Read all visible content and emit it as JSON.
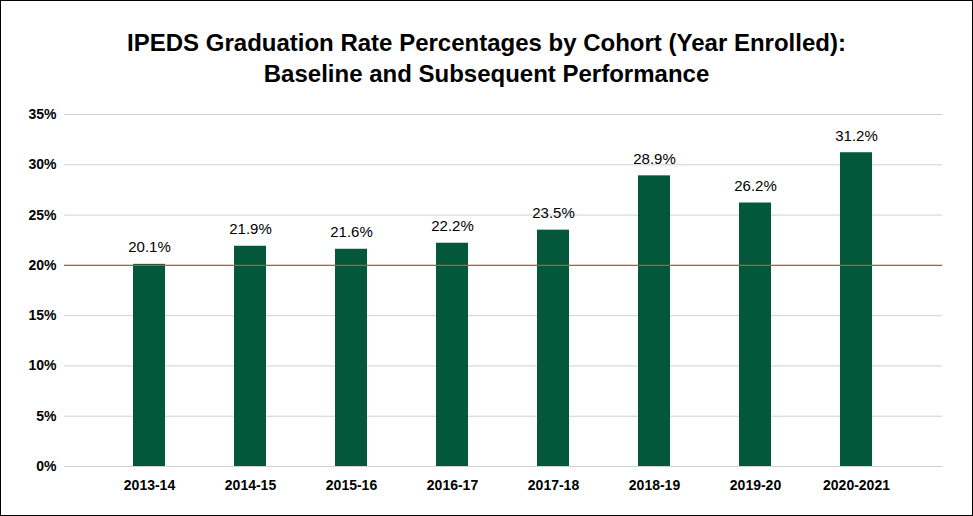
{
  "chart_data": {
    "type": "bar",
    "title": "IPEDS Graduation Rate Percentages by Cohort (Year Enrolled):\nBaseline and Subsequent Performance",
    "categories": [
      "2013-14",
      "2014-15",
      "2015-16",
      "2016-17",
      "2017-18",
      "2018-19",
      "2019-20",
      "2020-2021"
    ],
    "values": [
      20.1,
      21.9,
      21.6,
      22.2,
      23.5,
      28.9,
      26.2,
      31.2
    ],
    "value_labels": [
      "20.1%",
      "21.9%",
      "21.6%",
      "22.2%",
      "23.5%",
      "28.9%",
      "26.2%",
      "31.2%"
    ],
    "data_labels": true,
    "color": "#03573b",
    "ylim": [
      0,
      35
    ],
    "yticks": [
      {
        "value": 0,
        "label": "0%"
      },
      {
        "value": 5,
        "label": "5%"
      },
      {
        "value": 10,
        "label": "10%"
      },
      {
        "value": 15,
        "label": "15%"
      },
      {
        "value": 20,
        "label": "20%"
      },
      {
        "value": 25,
        "label": "25%"
      },
      {
        "value": 30,
        "label": "30%"
      },
      {
        "value": 35,
        "label": "35%"
      }
    ],
    "grid": true,
    "reference_line": {
      "value": 20,
      "color": "#c55a11"
    }
  }
}
